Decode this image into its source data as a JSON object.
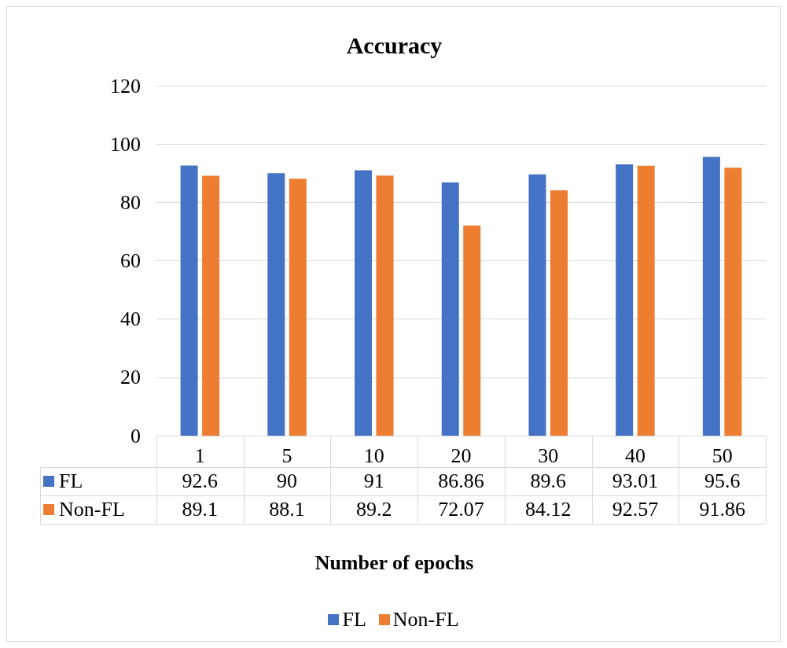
{
  "chart_data": {
    "type": "bar",
    "title": "Accuracy",
    "xlabel": "Number of epochs",
    "categories": [
      "1",
      "5",
      "10",
      "20",
      "30",
      "40",
      "50"
    ],
    "series": [
      {
        "name": "FL",
        "color": "#4472c4",
        "values": [
          92.6,
          90,
          91,
          86.86,
          89.6,
          93.01,
          95.6
        ]
      },
      {
        "name": "Non-FL",
        "color": "#ed7d31",
        "values": [
          89.1,
          88.1,
          89.2,
          72.07,
          84.12,
          92.57,
          91.86
        ]
      }
    ],
    "ylim": [
      0,
      120
    ],
    "yticks": [
      0,
      20,
      40,
      60,
      80,
      100,
      120
    ],
    "grid": "y",
    "legend": "bottom",
    "data_labels": true
  }
}
